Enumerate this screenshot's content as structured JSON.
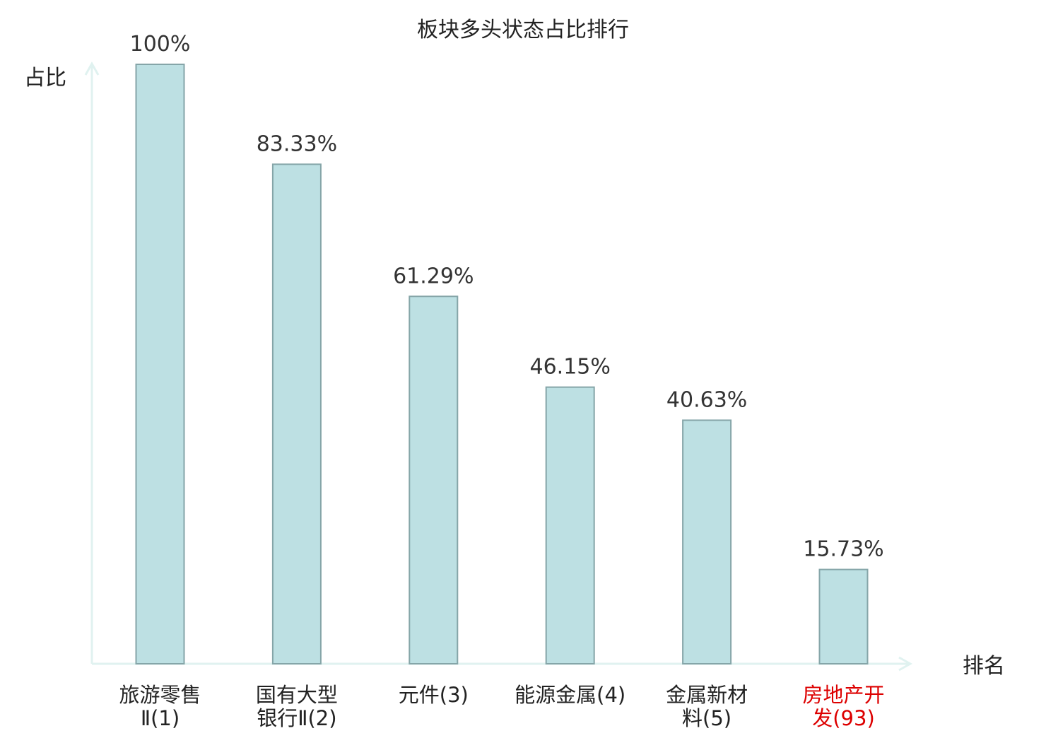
{
  "chart_data": {
    "type": "bar",
    "title": "板块多头状态占比排行",
    "xlabel": "排名",
    "ylabel": "占比",
    "ylim": [
      0,
      100
    ],
    "grid": false,
    "categories": [
      {
        "lines": [
          "旅游零售",
          "Ⅱ(1)"
        ],
        "highlight": false
      },
      {
        "lines": [
          "国有大型",
          "银行Ⅱ(2)"
        ],
        "highlight": false
      },
      {
        "lines": [
          "元件(3)"
        ],
        "highlight": false
      },
      {
        "lines": [
          "能源金属(4)"
        ],
        "highlight": false
      },
      {
        "lines": [
          "金属新材",
          "料(5)"
        ],
        "highlight": false
      },
      {
        "lines": [
          "房地产开",
          "发(93)"
        ],
        "highlight": true
      }
    ],
    "values": [
      100,
      83.33,
      61.29,
      46.15,
      40.63,
      15.73
    ],
    "value_labels": [
      "100%",
      "83.33%",
      "61.29%",
      "46.15%",
      "40.63%",
      "15.73%"
    ],
    "colors": {
      "bar_fill": "#bde0e3",
      "bar_stroke": "#85a5a8",
      "axis": "#e0f2f0",
      "text": "#222222",
      "value_text": "#333333",
      "highlight_text": "#dd0000"
    }
  }
}
